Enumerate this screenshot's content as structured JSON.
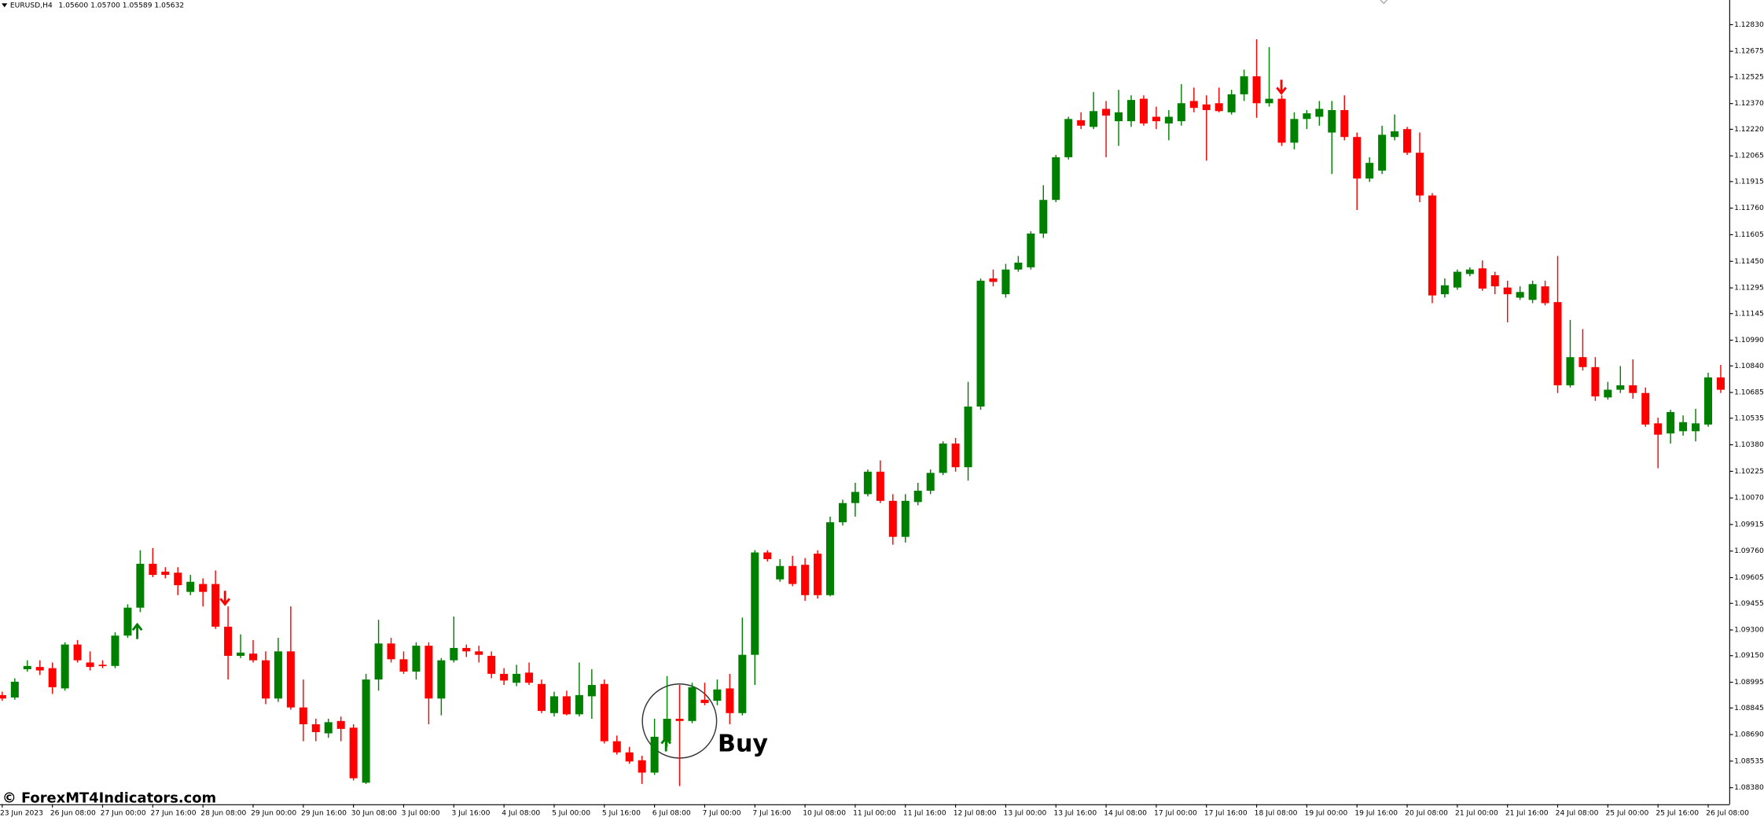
{
  "chart_data": {
    "type": "candlestick",
    "title": "EURUSD,H4",
    "header": "1.05600 1.05700 1.05589 1.05632",
    "watermark": "© ForexMT4Indicators.com",
    "annotation": "Buy",
    "colors": {
      "up": "#008000",
      "down": "#ff0000"
    },
    "categories": [
      "23 Jun 2023",
      null,
      null,
      null,
      "26 Jun 08:00",
      null,
      null,
      null,
      "27 Jun 00:00",
      null,
      null,
      null,
      "27 Jun 16:00",
      null,
      null,
      null,
      "28 Jun 08:00",
      null,
      null,
      null,
      "29 Jun 00:00",
      null,
      null,
      null,
      "29 Jun 16:00",
      null,
      null,
      null,
      "30 Jun 08:00",
      null,
      null,
      null,
      "3 Jul 00:00",
      null,
      null,
      null,
      "3 Jul 16:00",
      null,
      null,
      null,
      "4 Jul 08:00",
      null,
      null,
      null,
      "5 Jul 00:00",
      null,
      null,
      null,
      "5 Jul 16:00",
      null,
      null,
      null,
      "6 Jul 08:00",
      null,
      null,
      null,
      "7 Jul 00:00",
      null,
      null,
      null,
      "7 Jul 16:00",
      null,
      null,
      null,
      "10 Jul 08:00",
      null,
      null,
      null,
      "11 Jul 00:00",
      null,
      null,
      null,
      "11 Jul 16:00",
      null,
      null,
      null,
      "12 Jul 08:00",
      null,
      null,
      null,
      "13 Jul 00:00",
      null,
      null,
      null,
      "13 Jul 16:00",
      null,
      null,
      null,
      "14 Jul 08:00",
      null,
      null,
      null,
      "17 Jul 00:00",
      null,
      null,
      null,
      "17 Jul 16:00",
      null,
      null,
      null,
      "18 Jul 08:00",
      null,
      null,
      null,
      "19 Jul 00:00",
      null,
      null,
      null,
      "19 Jul 16:00",
      null,
      null,
      null,
      "20 Jul 08:00",
      null,
      null,
      null,
      "21 Jul 00:00",
      null,
      null,
      null,
      "21 Jul 16:00",
      null,
      null,
      null,
      "24 Jul 08:00",
      null,
      null,
      null,
      "25 Jul 00:00",
      null,
      null,
      null,
      "25 Jul 16:00",
      null,
      null,
      null,
      "26 Jul 08:00",
      null
    ],
    "open": [
      1.0892,
      1.08906,
      1.09071,
      1.09084,
      1.09077,
      1.08959,
      1.09215,
      1.0911,
      1.09097,
      1.0909,
      1.09267,
      1.0943,
      1.09686,
      1.0964,
      1.09634,
      1.09522,
      1.09568,
      1.09568,
      1.09319,
      1.09149,
      1.09162,
      1.09123,
      1.089,
      1.09175,
      1.08848,
      1.0875,
      1.08697,
      1.08769,
      1.0873,
      1.08409,
      1.09011,
      1.09221,
      1.09129,
      1.09057,
      1.09208,
      1.089,
      1.09123,
      1.09195,
      1.09175,
      1.09149,
      1.09044,
      1.08992,
      1.09051,
      1.08985,
      1.08815,
      1.08913,
      1.08808,
      1.08913,
      1.08985,
      1.08651,
      1.08586,
      1.0854,
      1.08468,
      1.08651,
      1.08782,
      1.08769,
      1.08893,
      1.08887,
      1.08959,
      1.08815,
      1.09155,
      1.09752,
      1.09595,
      1.09673,
      1.0968,
      1.09745,
      1.09503,
      1.09928,
      1.1004,
      1.10092,
      1.10223,
      1.10053,
      1.09843,
      1.10046,
      1.10112,
      1.10216,
      1.10387,
      1.10249,
      1.10603,
      1.1135,
      1.11258,
      1.11402,
      1.11415,
      1.11612,
      1.11808,
      1.12057,
      1.12273,
      1.12234,
      1.12339,
      1.12267,
      1.12267,
      1.12398,
      1.12293,
      1.12254,
      1.12267,
      1.12385,
      1.12365,
      1.12372,
      1.12319,
      1.12424,
      1.12529,
      1.12372,
      1.12398,
      1.12142,
      1.1228,
      1.12293,
      1.12201,
      1.12332,
      1.12175,
      1.11933,
      1.11979,
      1.12175,
      1.12221,
      1.12083,
      1.11834,
      1.11258,
      1.11297,
      1.11376,
      1.11409,
      1.11369,
      1.11297,
      1.11238,
      1.11225,
      1.11304,
      1.11212,
      1.10727,
      1.10891,
      1.10833,
      1.10656,
      1.10701,
      1.10727,
      1.10682,
      1.10505,
      1.10446,
      1.10459,
      1.10459,
      1.10498,
      1.10773
    ],
    "high": [
      1.0894,
      1.09018,
      1.09123,
      1.09123,
      1.0911,
      1.09228,
      1.09241,
      1.09175,
      1.09123,
      1.09286,
      1.0945,
      1.09765,
      1.09778,
      1.09666,
      1.09666,
      1.09621,
      1.09601,
      1.09647,
      1.09437,
      1.09274,
      1.09241,
      1.09175,
      1.09254,
      1.09437,
      1.09011,
      1.08782,
      1.08782,
      1.08795,
      1.0875,
      1.09044,
      1.09359,
      1.09254,
      1.09175,
      1.09228,
      1.09228,
      1.09136,
      1.09378,
      1.09215,
      1.09208,
      1.09175,
      1.09077,
      1.09097,
      1.0911,
      1.09011,
      1.0894,
      1.08946,
      1.0911,
      1.09071,
      1.09011,
      1.08684,
      1.08618,
      1.08566,
      1.08782,
      1.09031,
      1.08979,
      1.08992,
      1.08992,
      1.09011,
      1.09044,
      1.09372,
      1.09765,
      1.09765,
      1.09713,
      1.09732,
      1.09719,
      1.09765,
      1.09961,
      1.1006,
      1.10158,
      1.10236,
      1.10289,
      1.10092,
      1.10092,
      1.10158,
      1.10236,
      1.104,
      1.1042,
      1.10747,
      1.1135,
      1.11402,
      1.11435,
      1.11481,
      1.11625,
      1.11894,
      1.1207,
      1.12293,
      1.12319,
      1.12437,
      1.12385,
      1.1245,
      1.12418,
      1.12418,
      1.12352,
      1.12332,
      1.12483,
      1.12463,
      1.12418,
      1.12463,
      1.1245,
      1.12568,
      1.12745,
      1.12699,
      1.12418,
      1.12319,
      1.12332,
      1.12385,
      1.12385,
      1.12418,
      1.12201,
      1.12057,
      1.12241,
      1.12306,
      1.12234,
      1.12201,
      1.11848,
      1.1135,
      1.11402,
      1.11415,
      1.11455,
      1.11389,
      1.11337,
      1.11304,
      1.11337,
      1.11337,
      1.11481,
      1.11108,
      1.11055,
      1.10891,
      1.10747,
      1.10839,
      1.10878,
      1.10714,
      1.10538,
      1.10584,
      1.10551,
      1.1059,
      1.108,
      1.10846
    ],
    "low": [
      1.08887,
      1.08893,
      1.09057,
      1.09037,
      1.08927,
      1.08946,
      1.0911,
      1.09064,
      1.09077,
      1.09077,
      1.09254,
      1.09404,
      1.09608,
      1.09601,
      1.09503,
      1.09503,
      1.09437,
      1.09306,
      1.09011,
      1.09136,
      1.0911,
      1.08867,
      1.0888,
      1.08835,
      1.08651,
      1.08651,
      1.08671,
      1.08651,
      1.08422,
      1.08402,
      1.08946,
      1.0911,
      1.09044,
      1.09011,
      1.0875,
      1.08802,
      1.0911,
      1.09142,
      1.0911,
      1.09018,
      1.08979,
      1.08972,
      1.08979,
      1.08815,
      1.08795,
      1.08802,
      1.08795,
      1.08782,
      1.08638,
      1.08573,
      1.0852,
      1.08402,
      1.08455,
      1.08618,
      1.08389,
      1.08756,
      1.08861,
      1.08861,
      1.0875,
      1.08802,
      1.08979,
      1.09699,
      1.09581,
      1.09555,
      1.0947,
      1.09483,
      1.09496,
      1.09909,
      1.09961,
      1.10079,
      1.1004,
      1.09797,
      1.0981,
      1.10027,
      1.10092,
      1.10203,
      1.10223,
      1.10171,
      1.10584,
      1.11304,
      1.11238,
      1.11389,
      1.11402,
      1.11586,
      1.11795,
      1.12044,
      1.12221,
      1.12221,
      1.12057,
      1.12123,
      1.12234,
      1.12241,
      1.12221,
      1.12156,
      1.12241,
      1.12319,
      1.12037,
      1.12319,
      1.12306,
      1.12385,
      1.12287,
      1.12352,
      1.12123,
      1.12103,
      1.12221,
      1.12241,
      1.11959,
      1.12156,
      1.11749,
      1.11913,
      1.11959,
      1.12156,
      1.1207,
      1.11795,
      1.11206,
      1.11238,
      1.11284,
      1.11363,
      1.11278,
      1.11258,
      1.11094,
      1.11225,
      1.11206,
      1.11193,
      1.10682,
      1.10714,
      1.10813,
      1.10636,
      1.10643,
      1.10682,
      1.10649,
      1.10485,
      1.10243,
      1.10387,
      1.10433,
      1.104,
      1.10485,
      1.10682
    ],
    "close": [
      1.089,
      1.08998,
      1.0909,
      1.09064,
      1.08966,
      1.09215,
      1.09123,
      1.09084,
      1.0909,
      1.09267,
      1.0943,
      1.09686,
      1.09621,
      1.09621,
      1.09561,
      1.09581,
      1.09522,
      1.09319,
      1.09149,
      1.09168,
      1.09123,
      1.089,
      1.09175,
      1.08848,
      1.0875,
      1.08704,
      1.08762,
      1.08723,
      1.08435,
      1.09011,
      1.09221,
      1.09129,
      1.09057,
      1.09208,
      1.089,
      1.09123,
      1.09195,
      1.09175,
      1.09155,
      1.09044,
      1.09005,
      1.09044,
      1.08992,
      1.08828,
      1.08913,
      1.08808,
      1.0892,
      1.08979,
      1.08651,
      1.08586,
      1.08533,
      1.08468,
      1.08677,
      1.08782,
      1.08769,
      1.08966,
      1.08874,
      1.08953,
      1.08815,
      1.09155,
      1.09752,
      1.09713,
      1.09673,
      1.09568,
      1.09503,
      1.09503,
      1.09928,
      1.1004,
      1.10105,
      1.10223,
      1.10053,
      1.09843,
      1.10053,
      1.10112,
      1.10216,
      1.10387,
      1.10249,
      1.10603,
      1.11337,
      1.1133,
      1.11402,
      1.11442,
      1.11612,
      1.11808,
      1.12057,
      1.1228,
      1.12241,
      1.12326,
      1.123,
      1.12319,
      1.12391,
      1.12254,
      1.12267,
      1.12293,
      1.12372,
      1.12345,
      1.12332,
      1.12326,
      1.12424,
      1.12529,
      1.12372,
      1.12398,
      1.12142,
      1.1228,
      1.12313,
      1.12339,
      1.12332,
      1.12175,
      1.11933,
      1.12024,
      1.12188,
      1.12208,
      1.12083,
      1.11834,
      1.11251,
      1.1131,
      1.11389,
      1.11402,
      1.11291,
      1.11304,
      1.11258,
      1.11271,
      1.11317,
      1.11206,
      1.10727,
      1.10891,
      1.10833,
      1.10662,
      1.10701,
      1.10727,
      1.10682,
      1.10498,
      1.10439,
      1.10571,
      1.10512,
      1.10505,
      1.10773,
      1.10701
    ],
    "ylim": [
      1.08284,
      1.12974
    ],
    "yticks": [
      {
        "value": 1.1283,
        "label": "1.12830"
      },
      {
        "value": 1.12675,
        "label": "1.12675"
      },
      {
        "value": 1.12525,
        "label": "1.12525"
      },
      {
        "value": 1.1237,
        "label": "1.12370"
      },
      {
        "value": 1.1222,
        "label": "1.12220"
      },
      {
        "value": 1.12065,
        "label": "1.12065"
      },
      {
        "value": 1.11915,
        "label": "1.11915"
      },
      {
        "value": 1.1176,
        "label": "1.11760"
      },
      {
        "value": 1.11605,
        "label": "1.11605"
      },
      {
        "value": 1.1145,
        "label": "1.11450"
      },
      {
        "value": 1.11295,
        "label": "1.11295"
      },
      {
        "value": 1.11145,
        "label": "1.11145"
      },
      {
        "value": 1.1099,
        "label": "1.10990"
      },
      {
        "value": 1.1084,
        "label": "1.10840"
      },
      {
        "value": 1.10685,
        "label": "1.10685"
      },
      {
        "value": 1.10535,
        "label": "1.10535"
      },
      {
        "value": 1.1038,
        "label": "1.10380"
      },
      {
        "value": 1.10225,
        "label": "1.10225"
      },
      {
        "value": 1.1007,
        "label": "1.10070"
      },
      {
        "value": 1.09915,
        "label": "1.09915"
      },
      {
        "value": 1.0976,
        "label": "1.09760"
      },
      {
        "value": 1.09605,
        "label": "1.09605"
      },
      {
        "value": 1.09455,
        "label": "1.09455"
      },
      {
        "value": 1.093,
        "label": "1.09300"
      },
      {
        "value": 1.0915,
        "label": "1.09150"
      },
      {
        "value": 1.08995,
        "label": "1.08995"
      },
      {
        "value": 1.08845,
        "label": "1.08845"
      },
      {
        "value": 1.0869,
        "label": "1.08690"
      },
      {
        "value": 1.08535,
        "label": "1.08535"
      },
      {
        "value": 1.0838,
        "label": "1.08380"
      }
    ],
    "grid": false
  }
}
